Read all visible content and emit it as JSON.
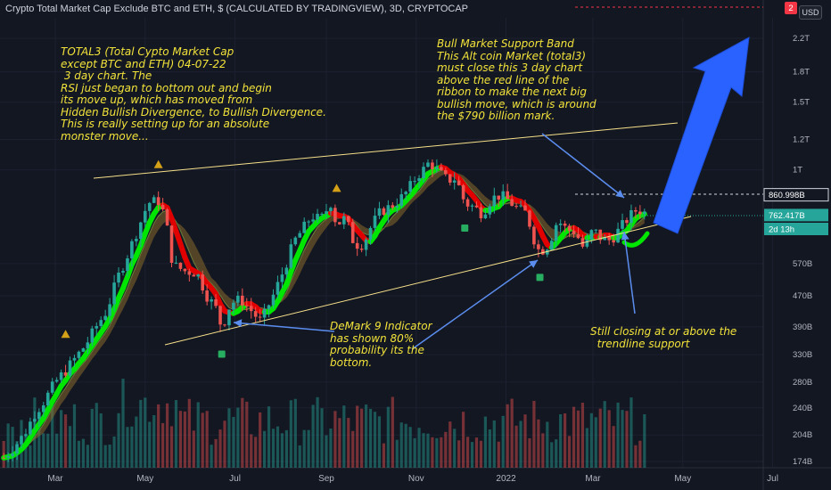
{
  "header": {
    "title": "Crypto Total Market Cap Exclude BTC and ETH, $ (CALCULATED BY TRADINGVIEW), 3D, CRYPTOCAP",
    "currency": "USD"
  },
  "annotations": {
    "total3": "TOTAL3 (Total Cypto Market Cap\nexcept BTC and ETH) 04-07-22\n 3 day chart. The\nRSI just began to bottom out and begin\nits move up, which has moved from\nHidden Bullish Divergence, to Bullish Divergence.\nThis is really setting up for an absolute\nmonster move...",
    "bull_band": "Bull Market Support Band\nThis Alt coin Market (total3)\nmust close this 3 day chart\nabove the red line of the\nribbon to make the next big\nbullish move, which is around\nthe $790 billion mark.",
    "demark": "DeMark 9 Indicator\nhas shown 80%\nprobability its the\nbottom.",
    "trendline": "Still closing at or above the\n  trendline support"
  },
  "chart_data": {
    "type": "candlestick",
    "symbol": "CRYPTOCAP:TOTAL3",
    "interval": "3D",
    "y_scale": "log",
    "ylim": [
      172000000000,
      2600000000000
    ],
    "y_ticks": [
      {
        "label": "2.2T",
        "value": 2200000000000
      },
      {
        "label": "1.8T",
        "value": 1800000000000
      },
      {
        "label": "1.5T",
        "value": 1500000000000
      },
      {
        "label": "1.2T",
        "value": 1200000000000
      },
      {
        "label": "1T",
        "value": 1000000000000
      },
      {
        "label": "570B",
        "value": 570000000000
      },
      {
        "label": "470B",
        "value": 470000000000
      },
      {
        "label": "390B",
        "value": 390000000000
      },
      {
        "label": "330B",
        "value": 330000000000
      },
      {
        "label": "280B",
        "value": 280000000000
      },
      {
        "label": "240B",
        "value": 240000000000
      },
      {
        "label": "204B",
        "value": 204000000000
      },
      {
        "label": "174B",
        "value": 174000000000
      }
    ],
    "x_ticks": [
      {
        "label": "Mar",
        "date": "2021-03-01"
      },
      {
        "label": "May",
        "date": "2021-05-01"
      },
      {
        "label": "Jul",
        "date": "2021-07-01"
      },
      {
        "label": "Sep",
        "date": "2021-09-01"
      },
      {
        "label": "Nov",
        "date": "2021-11-01"
      },
      {
        "label": "2022",
        "date": "2022-01-01"
      },
      {
        "label": "Mar",
        "date": "2022-03-01"
      },
      {
        "label": "May",
        "date": "2022-05-01"
      },
      {
        "label": "Jul",
        "date": "2022-07-01"
      }
    ],
    "price_tags": [
      {
        "label": "860.998B",
        "value": 860998000000,
        "style": "target",
        "color": "#ffffff"
      },
      {
        "label": "762.417B",
        "value": 762417000000,
        "style": "last",
        "color": "#26a69a"
      },
      {
        "label": "2d 13h",
        "value": 700000000000,
        "style": "countdown",
        "color": "#26a69a"
      }
    ],
    "top_marker": {
      "label": "2",
      "color": "#f23645"
    },
    "closes": [
      [
        "2021-01-25",
        178
      ],
      [
        "2021-02-01",
        190
      ],
      [
        "2021-02-08",
        205
      ],
      [
        "2021-02-15",
        232
      ],
      [
        "2021-02-22",
        252
      ],
      [
        "2021-03-01",
        280
      ],
      [
        "2021-03-08",
        300
      ],
      [
        "2021-03-15",
        325
      ],
      [
        "2021-03-22",
        352
      ],
      [
        "2021-03-29",
        392
      ],
      [
        "2021-04-05",
        430
      ],
      [
        "2021-04-12",
        520
      ],
      [
        "2021-04-19",
        600
      ],
      [
        "2021-04-26",
        700
      ],
      [
        "2021-05-03",
        820
      ],
      [
        "2021-05-10",
        830
      ],
      [
        "2021-05-13",
        780
      ],
      [
        "2021-05-16",
        700
      ],
      [
        "2021-05-19",
        590
      ],
      [
        "2021-05-22",
        560
      ],
      [
        "2021-05-28",
        545
      ],
      [
        "2021-06-05",
        540
      ],
      [
        "2021-06-12",
        470
      ],
      [
        "2021-06-19",
        430
      ],
      [
        "2021-06-22",
        385
      ],
      [
        "2021-06-28",
        450
      ],
      [
        "2021-07-05",
        460
      ],
      [
        "2021-07-12",
        430
      ],
      [
        "2021-07-19",
        400
      ],
      [
        "2021-07-22",
        430
      ],
      [
        "2021-07-28",
        480
      ],
      [
        "2021-08-04",
        560
      ],
      [
        "2021-08-10",
        650
      ],
      [
        "2021-08-16",
        700
      ],
      [
        "2021-08-22",
        760
      ],
      [
        "2021-08-28",
        740
      ],
      [
        "2021-09-04",
        820
      ],
      [
        "2021-09-08",
        720
      ],
      [
        "2021-09-14",
        750
      ],
      [
        "2021-09-20",
        640
      ],
      [
        "2021-09-26",
        640
      ],
      [
        "2021-10-02",
        720
      ],
      [
        "2021-10-08",
        780
      ],
      [
        "2021-10-14",
        800
      ],
      [
        "2021-10-20",
        830
      ],
      [
        "2021-10-26",
        880
      ],
      [
        "2021-11-01",
        960
      ],
      [
        "2021-11-07",
        1010
      ],
      [
        "2021-11-10",
        1050
      ],
      [
        "2021-11-16",
        990
      ],
      [
        "2021-11-22",
        940
      ],
      [
        "2021-11-28",
        950
      ],
      [
        "2021-12-04",
        820
      ],
      [
        "2021-12-10",
        800
      ],
      [
        "2021-12-16",
        770
      ],
      [
        "2021-12-22",
        840
      ],
      [
        "2021-12-28",
        860
      ],
      [
        "2022-01-03",
        830
      ],
      [
        "2022-01-09",
        790
      ],
      [
        "2022-01-15",
        770
      ],
      [
        "2022-01-21",
        640
      ],
      [
        "2022-01-24",
        610
      ],
      [
        "2022-01-30",
        640
      ],
      [
        "2022-02-05",
        740
      ],
      [
        "2022-02-11",
        700
      ],
      [
        "2022-02-17",
        690
      ],
      [
        "2022-02-23",
        620
      ],
      [
        "2022-03-01",
        700
      ],
      [
        "2022-03-07",
        660
      ],
      [
        "2022-03-13",
        655
      ],
      [
        "2022-03-19",
        700
      ],
      [
        "2022-03-25",
        750
      ],
      [
        "2022-03-31",
        790
      ],
      [
        "2022-04-04",
        780
      ],
      [
        "2022-04-07",
        762.4
      ]
    ],
    "ribbon": {
      "upper_color": "#4caf50",
      "lower_color": "#f23645",
      "fill": "#8b6a2c"
    },
    "arrow": {
      "color": "#2962ff",
      "direction": "up"
    }
  }
}
